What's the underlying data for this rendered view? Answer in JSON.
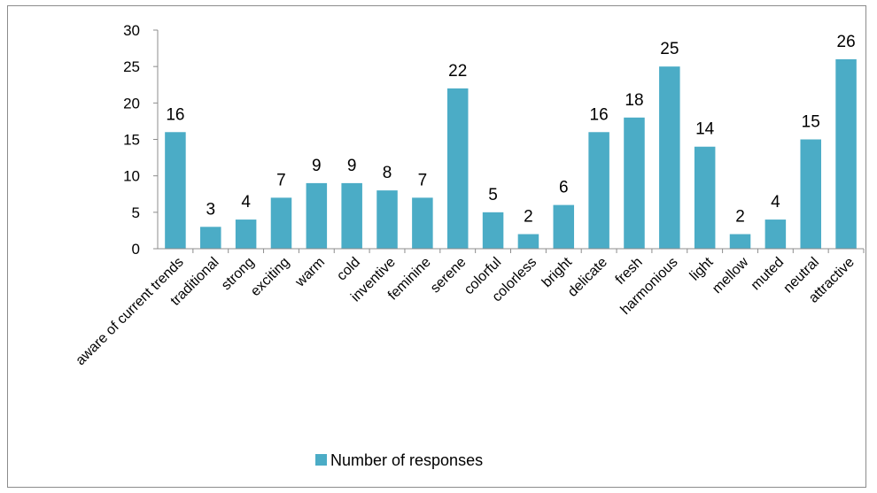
{
  "chart_data": {
    "type": "bar",
    "categories": [
      "aware of current trends",
      "traditional",
      "strong",
      "exciting",
      "warm",
      "cold",
      "inventive",
      "feminine",
      "serene",
      "colorful",
      "colorless",
      "bright",
      "delicate",
      "fresh",
      "harmonious",
      "light",
      "mellow",
      "muted",
      "neutral",
      "attractive"
    ],
    "series": [
      {
        "name": "Number of responses",
        "values": [
          16,
          3,
          4,
          7,
          9,
          9,
          8,
          7,
          22,
          5,
          2,
          6,
          16,
          18,
          25,
          14,
          2,
          4,
          15,
          26
        ],
        "color": "#4bacc6"
      }
    ],
    "title": "",
    "xlabel": "",
    "ylabel": "",
    "ylim": [
      0,
      30
    ],
    "yticks": [
      0,
      5,
      10,
      15,
      20,
      25,
      30
    ],
    "grid": false,
    "legend_position": "bottom",
    "data_labels": true
  }
}
